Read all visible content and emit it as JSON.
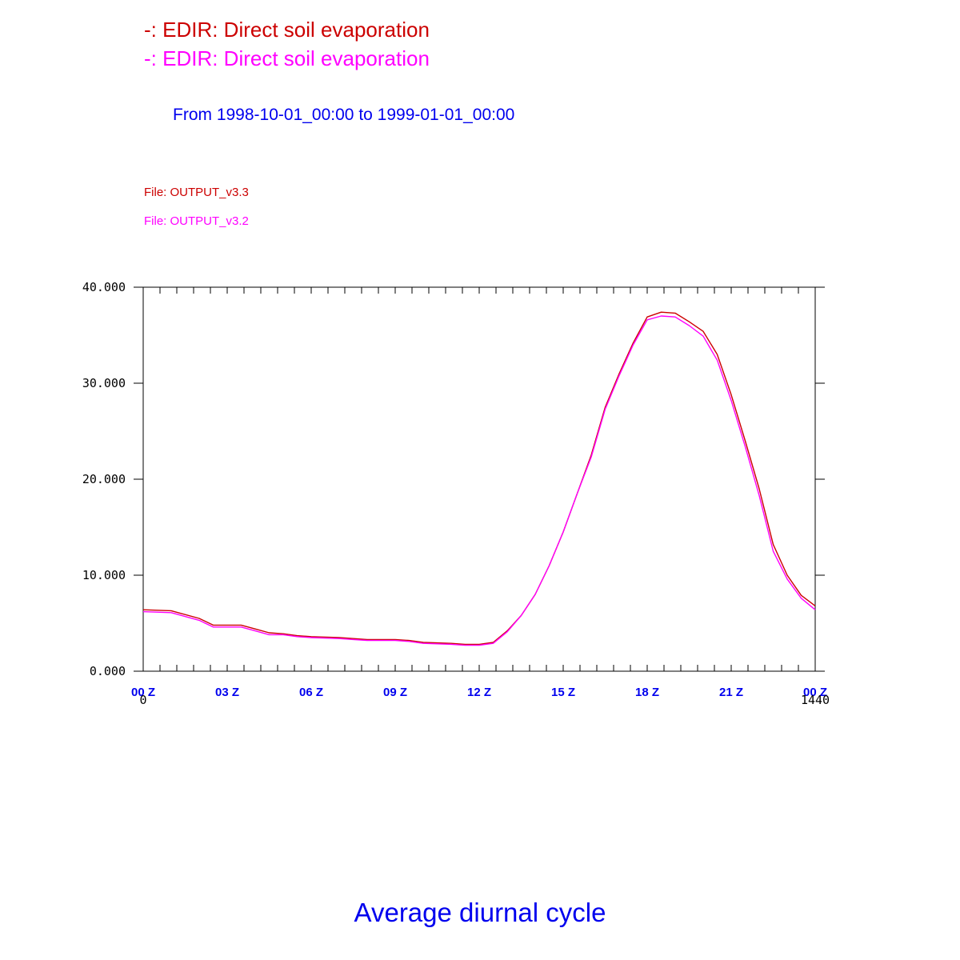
{
  "header": {
    "legend": [
      {
        "text": "-: EDIR: Direct soil evaporation",
        "color": "#cc0000"
      },
      {
        "text": "-: EDIR: Direct soil evaporation",
        "color": "#ff00ff"
      }
    ],
    "period": "From 1998-10-01_00:00 to 1999-01-01_00:00",
    "period_color": "#0000ee",
    "files": [
      {
        "text": "File: OUTPUT_v3.3",
        "color": "#cc0000"
      },
      {
        "text": "File: OUTPUT_v3.2",
        "color": "#ff00ff"
      }
    ]
  },
  "footer": {
    "title": "Average diurnal cycle",
    "color": "#0000ee"
  },
  "chart_data": {
    "type": "line",
    "title": "",
    "xlabel": "",
    "ylabel": "",
    "xlim": [
      0,
      1440
    ],
    "ylim": [
      0,
      40
    ],
    "grid": false,
    "x_end_labels": [
      "0",
      "1440"
    ],
    "x_ticks": [
      {
        "value": 0,
        "label": "00 Z"
      },
      {
        "value": 180,
        "label": "03 Z"
      },
      {
        "value": 360,
        "label": "06 Z"
      },
      {
        "value": 540,
        "label": "09 Z"
      },
      {
        "value": 720,
        "label": "12 Z"
      },
      {
        "value": 900,
        "label": "15 Z"
      },
      {
        "value": 1080,
        "label": "18 Z"
      },
      {
        "value": 1260,
        "label": "21 Z"
      },
      {
        "value": 1440,
        "label": "00 Z"
      }
    ],
    "y_ticks": [
      {
        "value": 0,
        "label": "0.000"
      },
      {
        "value": 10,
        "label": "10.000"
      },
      {
        "value": 20,
        "label": "20.000"
      },
      {
        "value": 30,
        "label": "30.000"
      },
      {
        "value": 40,
        "label": "40.000"
      }
    ],
    "x": [
      0,
      60,
      120,
      150,
      210,
      240,
      270,
      300,
      330,
      360,
      420,
      450,
      480,
      540,
      570,
      600,
      660,
      690,
      720,
      750,
      780,
      810,
      840,
      870,
      900,
      930,
      960,
      990,
      1020,
      1050,
      1080,
      1110,
      1140,
      1170,
      1200,
      1230,
      1260,
      1290,
      1320,
      1350,
      1380,
      1410,
      1440
    ],
    "series": [
      {
        "color": "#cc0000",
        "values": [
          6.4,
          6.3,
          5.5,
          4.8,
          4.8,
          4.4,
          4.0,
          3.9,
          3.7,
          3.6,
          3.5,
          3.4,
          3.3,
          3.3,
          3.2,
          3.0,
          2.9,
          2.8,
          2.8,
          3.0,
          4.2,
          5.8,
          8.0,
          11.0,
          14.5,
          18.5,
          22.5,
          27.5,
          31.0,
          34.2,
          36.9,
          37.4,
          37.3,
          36.4,
          35.4,
          33.0,
          28.8,
          24.0,
          19.0,
          13.2,
          10.0,
          7.9,
          6.8
        ]
      },
      {
        "color": "#ff00ff",
        "values": [
          6.2,
          6.1,
          5.3,
          4.6,
          4.6,
          4.2,
          3.8,
          3.8,
          3.6,
          3.5,
          3.4,
          3.3,
          3.2,
          3.2,
          3.1,
          2.9,
          2.8,
          2.7,
          2.7,
          2.9,
          4.1,
          5.8,
          8.0,
          11.0,
          14.5,
          18.5,
          22.3,
          27.3,
          30.8,
          34.0,
          36.6,
          37.0,
          36.9,
          36.0,
          34.9,
          32.4,
          28.2,
          23.4,
          18.3,
          12.5,
          9.6,
          7.6,
          6.4
        ]
      }
    ]
  }
}
